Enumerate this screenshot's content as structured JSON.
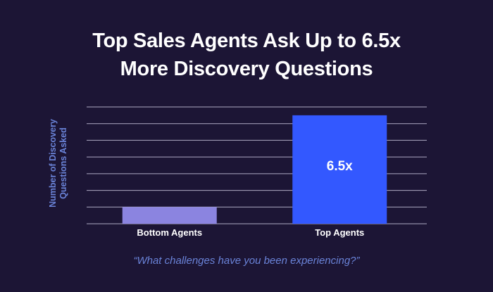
{
  "chart_data": {
    "type": "bar",
    "title_lines": [
      "Top Sales Agents Ask Up to 6.5x",
      "More Discovery Questions"
    ],
    "ylabel_lines": [
      "Number of Discovery",
      "Questions Asked"
    ],
    "xlabel": "",
    "categories": [
      "Bottom Agents",
      "Top Agents"
    ],
    "values": [
      1,
      6.5
    ],
    "data_labels": [
      "",
      "6.5x"
    ],
    "colors": [
      "#8b84e0",
      "#3358ff"
    ],
    "ylim": [
      0,
      7
    ],
    "grid": true,
    "yticks_labeled": false,
    "annotation": "“What challenges have you been experiencing?”"
  }
}
